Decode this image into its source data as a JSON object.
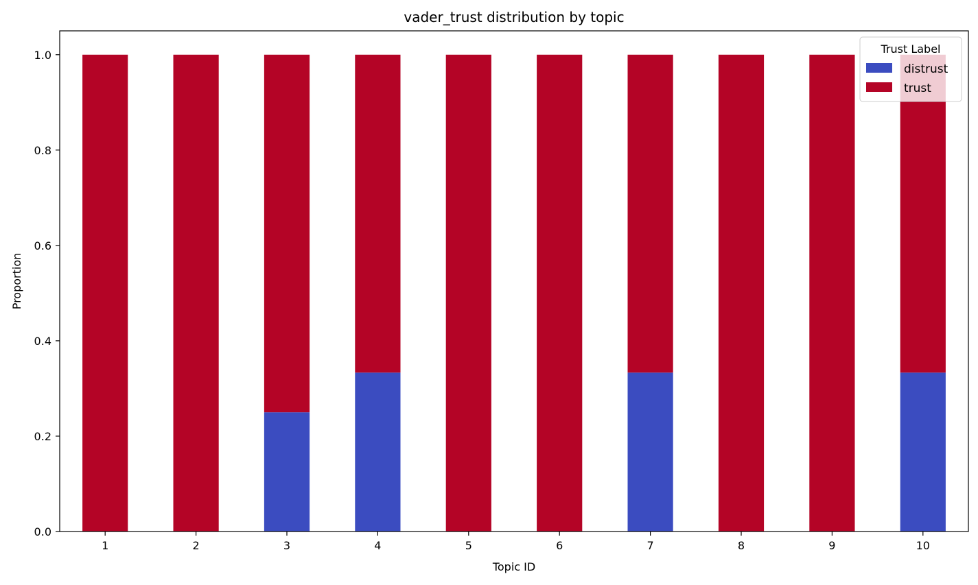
{
  "chart_data": {
    "type": "bar",
    "stacked": true,
    "title": "vader_trust distribution by topic",
    "xlabel": "Topic ID",
    "ylabel": "Proportion",
    "ylim": [
      0,
      1.05
    ],
    "yticks": [
      "0.0",
      "0.2",
      "0.4",
      "0.6",
      "0.8",
      "1.0"
    ],
    "categories": [
      "1",
      "2",
      "3",
      "4",
      "5",
      "6",
      "7",
      "8",
      "9",
      "10"
    ],
    "series": [
      {
        "name": "distrust",
        "color": "#3b4cc0",
        "values": [
          0,
          0,
          0.25,
          0.3333,
          0,
          0,
          0.3333,
          0,
          0,
          0.3333
        ]
      },
      {
        "name": "trust",
        "color": "#b40426",
        "values": [
          1,
          1,
          0.75,
          0.6667,
          1,
          1,
          0.6667,
          1,
          1,
          0.6667
        ]
      }
    ],
    "legend": {
      "title": "Trust Label",
      "position": "top-right"
    },
    "grid": false
  }
}
